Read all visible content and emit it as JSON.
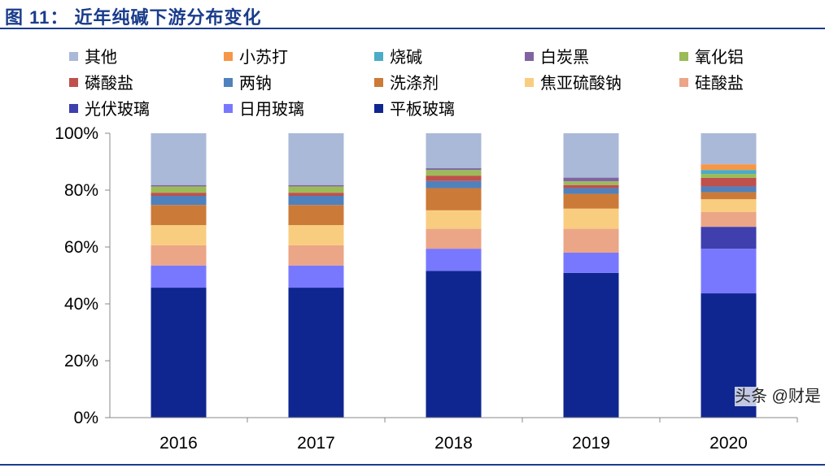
{
  "title": "图 11：  近年纯碱下游分布变化",
  "watermark": "头条 @财是",
  "chart_data": {
    "type": "bar",
    "stacked": true,
    "categories": [
      "2016",
      "2017",
      "2018",
      "2019",
      "2020"
    ],
    "ylim": [
      0,
      100
    ],
    "yticks": [
      "0%",
      "20%",
      "40%",
      "60%",
      "80%",
      "100%"
    ],
    "legend_position": "top",
    "series": [
      {
        "name": "平板玻璃",
        "color": "#0f2690",
        "values": [
          45.7,
          45.7,
          51.6,
          50.9,
          43.7
        ]
      },
      {
        "name": "日用玻璃",
        "color": "#7878ff",
        "values": [
          7.8,
          7.8,
          7.8,
          7.1,
          15.7
        ]
      },
      {
        "name": "光伏玻璃",
        "color": "#3f3fae",
        "values": [
          0,
          0,
          0,
          0,
          7.7
        ]
      },
      {
        "name": "硅酸盐",
        "color": "#eba587",
        "values": [
          7.1,
          7.1,
          7.0,
          8.4,
          5.2
        ]
      },
      {
        "name": "焦亚硫酸钠",
        "color": "#f9cd80",
        "values": [
          7.1,
          7.1,
          6.5,
          7.1,
          4.5
        ]
      },
      {
        "name": "洗涤剂",
        "color": "#cc7a38",
        "values": [
          7.1,
          7.1,
          7.8,
          5.2,
          2.5
        ]
      },
      {
        "name": "两钠",
        "color": "#4f81bd",
        "values": [
          3.2,
          3.2,
          2.5,
          2.0,
          2.0
        ]
      },
      {
        "name": "磷酸盐",
        "color": "#c0504d",
        "values": [
          1.1,
          1.1,
          1.9,
          1.1,
          3.0
        ]
      },
      {
        "name": "氧化铝",
        "color": "#9bbb59",
        "values": [
          2.2,
          2.2,
          2.0,
          1.3,
          1.4
        ]
      },
      {
        "name": "白炭黑",
        "color": "#8064a2",
        "values": [
          0.5,
          0.5,
          0.6,
          1.3,
          0
        ]
      },
      {
        "name": "烧碱",
        "color": "#4bacc6",
        "values": [
          0,
          0,
          0,
          0,
          1.4
        ]
      },
      {
        "name": "小苏打",
        "color": "#f79646",
        "values": [
          0,
          0,
          0,
          0,
          2.0
        ]
      },
      {
        "name": "其他",
        "color": "#aab9d8",
        "values": [
          18.2,
          18.2,
          12.3,
          15.6,
          10.9
        ]
      }
    ],
    "legend_order": [
      "其他",
      "小苏打",
      "烧碱",
      "白炭黑",
      "氧化铝",
      "磷酸盐",
      "两钠",
      "洗涤剂",
      "焦亚硫酸钠",
      "硅酸盐",
      "光伏玻璃",
      "日用玻璃",
      "平板玻璃"
    ]
  }
}
